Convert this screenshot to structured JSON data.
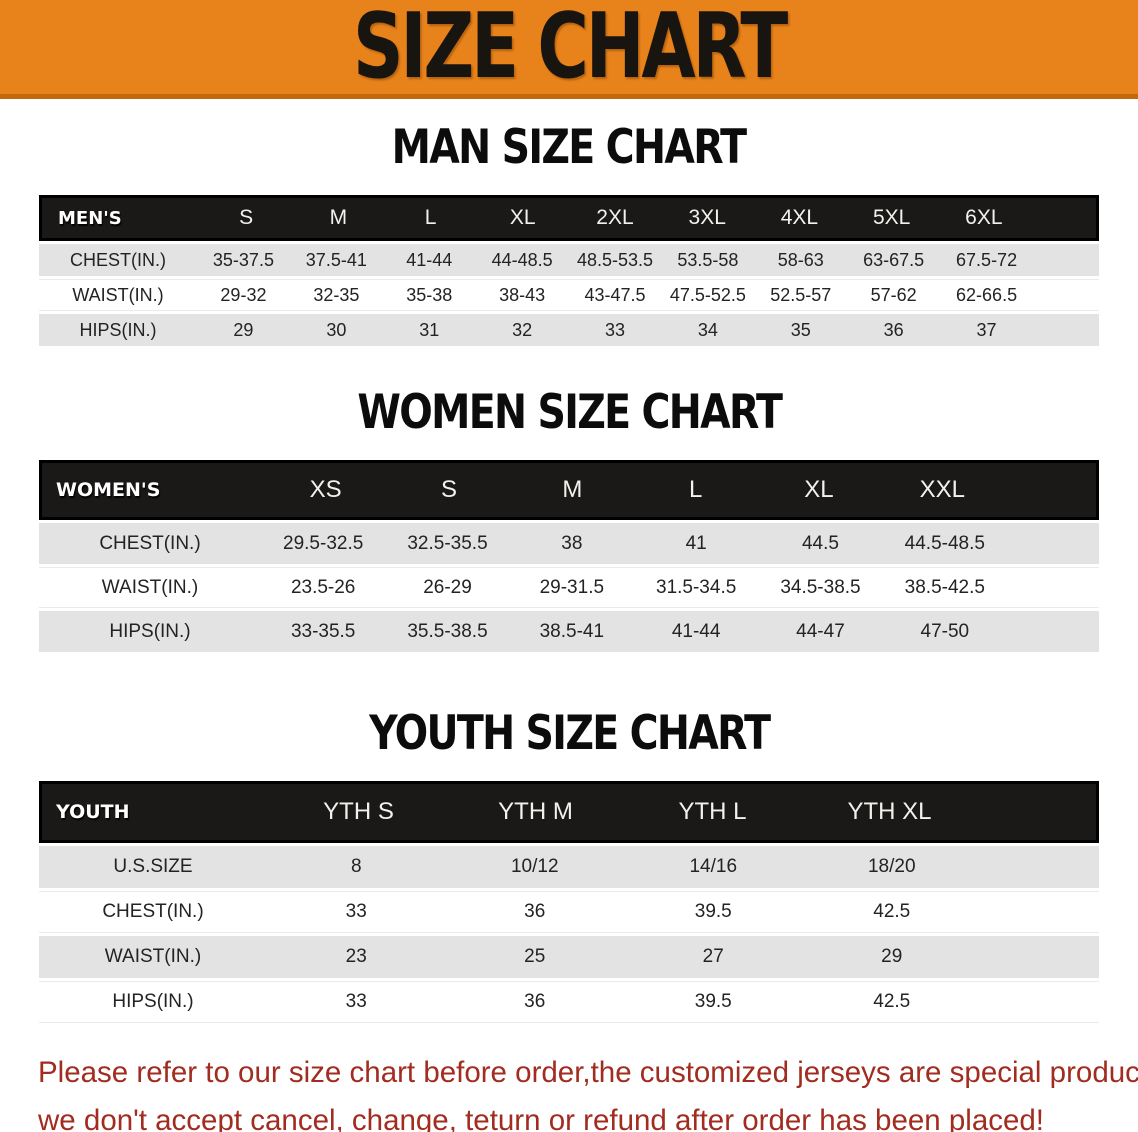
{
  "banner": {
    "title": "SIZE CHART",
    "bg_color": "#E8821B",
    "text_color": "#181410"
  },
  "sections": [
    {
      "heading": "MAN SIZE CHART",
      "table": {
        "label": "MEN'S",
        "columns": [
          "S",
          "M",
          "L",
          "XL",
          "2XL",
          "3XL",
          "4XL",
          "5XL",
          "6XL"
        ],
        "rows": [
          {
            "label": "CHEST(IN.)",
            "values": [
              "35-37.5",
              "37.5-41",
              "41-44",
              "44-48.5",
              "48.5-53.5",
              "53.5-58",
              "58-63",
              "63-67.5",
              "67.5-72"
            ]
          },
          {
            "label": "WAIST(IN.)",
            "values": [
              "29-32",
              "32-35",
              "35-38",
              "38-43",
              "43-47.5",
              "47.5-52.5",
              "52.5-57",
              "57-62",
              "62-66.5"
            ]
          },
          {
            "label": "HIPS(IN.)",
            "values": [
              "29",
              "30",
              "31",
              "32",
              "33",
              "34",
              "35",
              "36",
              "37"
            ]
          }
        ]
      }
    },
    {
      "heading": "WOMEN SIZE CHART",
      "table": {
        "label": "WOMEN'S",
        "columns": [
          "XS",
          "S",
          "M",
          "L",
          "XL",
          "XXL"
        ],
        "rows": [
          {
            "label": "CHEST(IN.)",
            "values": [
              "29.5-32.5",
              "32.5-35.5",
              "38",
              "41",
              "44.5",
              "44.5-48.5"
            ]
          },
          {
            "label": "WAIST(IN.)",
            "values": [
              "23.5-26",
              "26-29",
              "29-31.5",
              "31.5-34.5",
              "34.5-38.5",
              "38.5-42.5"
            ]
          },
          {
            "label": "HIPS(IN.)",
            "values": [
              "33-35.5",
              "35.5-38.5",
              "38.5-41",
              "41-44",
              "44-47",
              "47-50"
            ]
          }
        ]
      }
    },
    {
      "heading": "YOUTH SIZE CHART",
      "table": {
        "label": "YOUTH",
        "columns": [
          "YTH S",
          "YTH M",
          "YTH L",
          "YTH XL"
        ],
        "rows": [
          {
            "label": "U.S.SIZE",
            "values": [
              "8",
              "10/12",
              "14/16",
              "18/20"
            ]
          },
          {
            "label": "CHEST(IN.)",
            "values": [
              "33",
              "36",
              "39.5",
              "42.5"
            ]
          },
          {
            "label": "WAIST(IN.)",
            "values": [
              "23",
              "25",
              "27",
              "29"
            ]
          },
          {
            "label": "HIPS(IN.)",
            "values": [
              "33",
              "36",
              "39.5",
              "42.5"
            ]
          }
        ]
      }
    }
  ],
  "footnote": {
    "line1": "Please refer to our size chart before order,the customized jerseys are special products,",
    "line2": "we don't accept cancel, change, teturn or refund after order has been placed!",
    "color": "#A12C1F"
  },
  "colors": {
    "table_header_bg": "#1b1917",
    "row_stripe_gray": "#e3e3e3",
    "banner_orange": "#E8821B"
  }
}
